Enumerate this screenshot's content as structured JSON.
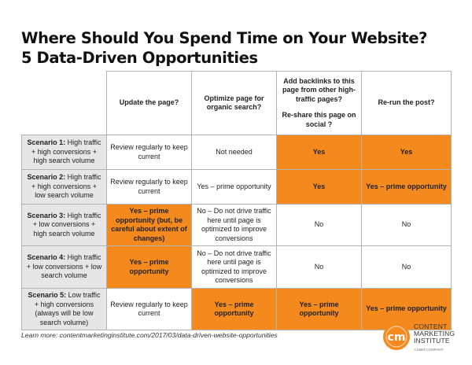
{
  "title": {
    "line1": "Where Should You Spend Time on Your Website?",
    "line2": "5 Data-Driven Opportunities"
  },
  "table": {
    "headers": {
      "col1": "Update the page?",
      "col2": "Optimize page for organic search?",
      "col3_line1": "Add backlinks to this page from other high-traffic pages?",
      "col3_line2": "Re-share this page on social ?",
      "col4": "Re-run the post?"
    },
    "rows": [
      {
        "scenario_label": "Scenario 1:",
        "scenario_text": "High traffic + high conversions + high search volume",
        "cells": [
          "Review regularly to keep current",
          "Not needed",
          "Yes",
          "Yes"
        ]
      },
      {
        "scenario_label": "Scenario 2:",
        "scenario_text": "High traffic + high conversions + low search volume",
        "cells": [
          "Review regularly to keep current",
          "Yes – prime opportunity",
          "Yes",
          "Yes – prime opportunity"
        ]
      },
      {
        "scenario_label": "Scenario 3:",
        "scenario_text": "High traffic + low conversions + high search volume",
        "cells": [
          "Yes – prime opportunity (but, be careful about extent of changes)",
          "No – Do not drive traffic here until page is optimized to improve conversions",
          "No",
          "No"
        ]
      },
      {
        "scenario_label": "Scenario 4:",
        "scenario_text": "High traffic + low conversions + low search volume",
        "cells": [
          "Yes – prime opportunity",
          "No – Do not drive traffic here until page is optimized to improve conversions",
          "No",
          "No"
        ]
      },
      {
        "scenario_label": "Scenario 5:",
        "scenario_text": "Low traffic + high conversions (always will be low search volume)",
        "cells": [
          "Review regularly to keep current",
          "Yes – prime opportunity",
          "Yes – prime opportunity",
          "Yes – prime opportunity"
        ]
      }
    ]
  },
  "footer": {
    "learn_more": "Learn more: contentmarketinginstitute.com/2017/03/data-driven-website-opportunities"
  },
  "logo": {
    "mark": "cm",
    "line1": "CONTENT",
    "line2": "MARKETING",
    "line3": "INSTITUTE",
    "sub": "A UBM COMPANY"
  },
  "colors": {
    "highlight": "#f48a1d",
    "scenario_bg": "#e6e6e6",
    "border": "#b3b3b3"
  }
}
